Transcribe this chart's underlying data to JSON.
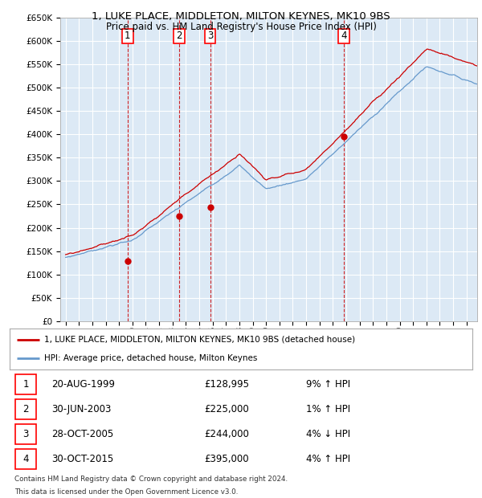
{
  "title_line1": "1, LUKE PLACE, MIDDLETON, MILTON KEYNES, MK10 9BS",
  "title_line2": "Price paid vs. HM Land Registry's House Price Index (HPI)",
  "x_start_year": 1995,
  "x_end_year": 2025,
  "y_min": 0,
  "y_max": 650000,
  "y_ticks": [
    0,
    50000,
    100000,
    150000,
    200000,
    250000,
    300000,
    350000,
    400000,
    450000,
    500000,
    550000,
    600000,
    650000
  ],
  "plot_bg_color": "#dce9f5",
  "grid_color": "#ffffff",
  "red_line_color": "#cc0000",
  "blue_line_color": "#6699cc",
  "sale_points": [
    {
      "label": "1",
      "year": 1999.64,
      "price": 128995
    },
    {
      "label": "2",
      "year": 2003.5,
      "price": 225000
    },
    {
      "label": "3",
      "year": 2005.83,
      "price": 244000
    },
    {
      "label": "4",
      "year": 2015.83,
      "price": 395000
    }
  ],
  "legend_line1": "1, LUKE PLACE, MIDDLETON, MILTON KEYNES, MK10 9BS (detached house)",
  "legend_line2": "HPI: Average price, detached house, Milton Keynes",
  "table_rows": [
    {
      "num": "1",
      "date": "20-AUG-1999",
      "price": "£128,995",
      "hpi": "9% ↑ HPI"
    },
    {
      "num": "2",
      "date": "30-JUN-2003",
      "price": "£225,000",
      "hpi": "1% ↑ HPI"
    },
    {
      "num": "3",
      "date": "28-OCT-2005",
      "price": "£244,000",
      "hpi": "4% ↓ HPI"
    },
    {
      "num": "4",
      "date": "30-OCT-2015",
      "price": "£395,000",
      "hpi": "4% ↑ HPI"
    }
  ],
  "footnote_line1": "Contains HM Land Registry data © Crown copyright and database right 2024.",
  "footnote_line2": "This data is licensed under the Open Government Licence v3.0."
}
